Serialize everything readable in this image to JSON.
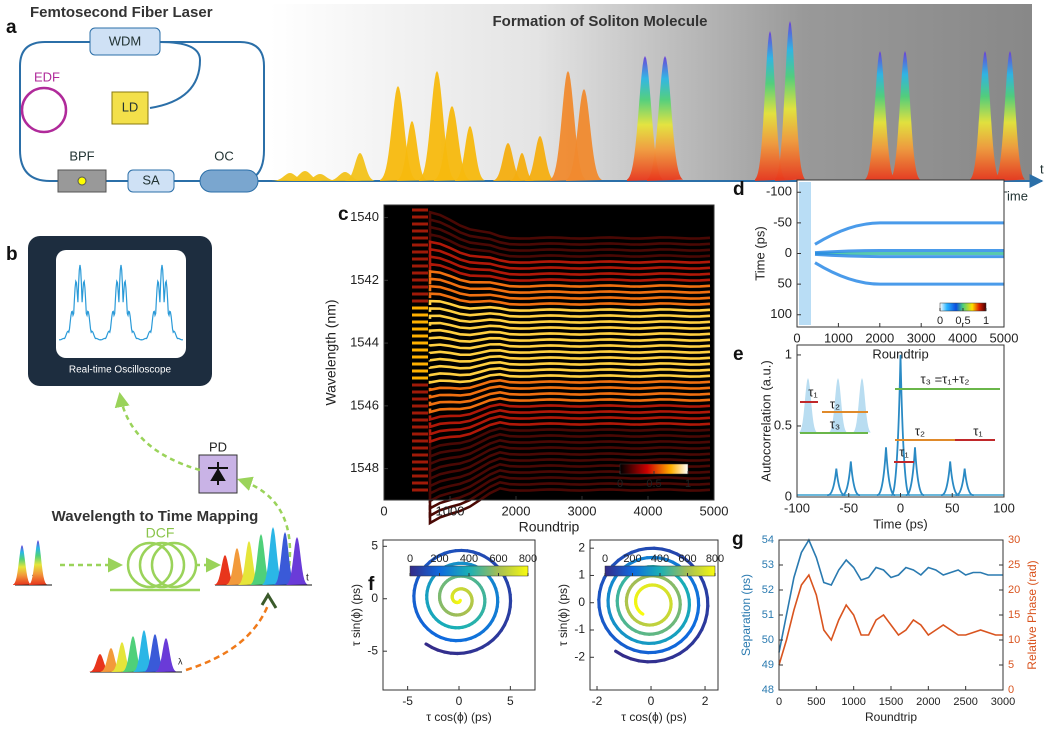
{
  "a": {
    "label": "a",
    "laser_title": "Femtosecond Fiber Laser",
    "wdm": "WDM",
    "edf": "EDF",
    "ld": "LD",
    "bpf": "BPF",
    "sa": "SA",
    "oc": "OC",
    "heading": "Formation of Soliton Molecule",
    "axis_symbol": "t",
    "axis_label": "Roundtrip Time"
  },
  "b": {
    "label": "b",
    "screen_caption": "Real-time Oscilloscope",
    "detector": "PD",
    "heading": "Wavelength to Time Mapping",
    "fiber": "DCF",
    "time_symbol": "t",
    "output_time_symbol": "t",
    "wavelength_symbol": "λ"
  },
  "c": {
    "label": "c",
    "xlabel": "Roundtrip",
    "ylabel": "Wavelength (nm)",
    "xlim": [
      0,
      5000
    ],
    "xticks": [
      0,
      1000,
      2000,
      3000,
      4000,
      5000
    ],
    "ylim": [
      1549,
      1539.6
    ],
    "yticks": [
      1540,
      1542,
      1544,
      1546,
      1548
    ],
    "colorbar_ticks": [
      0,
      0.5,
      1
    ]
  },
  "d": {
    "label": "d",
    "xlabel": "Roundtrip",
    "ylabel": "Time (ps)",
    "xlim": [
      0,
      5000
    ],
    "xticks": [
      0,
      1000,
      2000,
      3000,
      4000,
      5000
    ],
    "ylim": [
      120,
      -120
    ],
    "yticks": [
      -100,
      -50,
      0,
      50,
      100
    ],
    "colorbar_ticks": [
      0,
      0.5,
      1
    ]
  },
  "e": {
    "label": "e",
    "xlabel": "Time (ps)",
    "ylabel": "Autocorrelation (a.u.)",
    "xlim": [
      -100,
      100
    ],
    "xticks": [
      -100,
      -50,
      0,
      50,
      100
    ],
    "ylim": [
      0,
      1.07
    ],
    "yticks": [
      0,
      0.5,
      1
    ],
    "peaks_x": [
      -62,
      -48,
      -14,
      0,
      14,
      48,
      62
    ],
    "peaks": [
      0.2,
      0.25,
      0.35,
      1,
      0.35,
      0.25,
      0.2
    ],
    "annotations": [
      "τ₁",
      "τ₂",
      "τ₃",
      "τ₃ =τ₁+τ₂",
      "τ₂",
      "τ₁",
      "τ₁"
    ]
  },
  "f": {
    "label": "f",
    "left": {
      "xlabel": "τ cos(ϕ) (ps)",
      "ylabel": "τ sin(ϕ) (ps)",
      "xlim": [
        -7.4,
        7.4
      ],
      "xticks": [
        -5,
        0,
        5
      ],
      "ylim": [
        -8.7,
        5.6
      ],
      "yticks": [
        -5,
        0,
        5
      ],
      "colorbar_ticks": [
        0,
        200,
        400,
        600,
        800
      ]
    },
    "right": {
      "xlabel": "τ cos(ϕ) (ps)",
      "ylabel": "τ sin(ϕ) (ps)",
      "xlim": [
        -2.26,
        2.48
      ],
      "xticks": [
        -2,
        0,
        2
      ],
      "ylim": [
        -3.2,
        2.3
      ],
      "yticks": [
        -2,
        -1,
        0,
        1,
        2
      ],
      "colorbar_ticks": [
        0,
        200,
        400,
        600,
        800
      ]
    }
  },
  "g": {
    "label": "g",
    "xlabel": "Roundtrip",
    "ylabel": "Separation (ps)",
    "y2label": "Relative Phase (rad)",
    "xlim": [
      0,
      3000
    ],
    "xticks": [
      0,
      500,
      1000,
      1500,
      2000,
      2500,
      3000
    ],
    "ylim": [
      48,
      54
    ],
    "yticks": [
      48,
      49,
      50,
      51,
      52,
      53,
      54
    ],
    "y2lim": [
      0,
      30
    ],
    "y2ticks": [
      0,
      5,
      10,
      15,
      20,
      25,
      30
    ],
    "x": [
      0,
      100,
      200,
      300,
      400,
      500,
      600,
      700,
      800,
      900,
      1000,
      1100,
      1200,
      1300,
      1400,
      1500,
      1600,
      1700,
      1800,
      1900,
      2000,
      2100,
      2200,
      2300,
      2400,
      2500,
      2600,
      2700,
      2800,
      2900,
      3000
    ],
    "series": [
      {
        "name": "Separation",
        "color": "#2a7ab0",
        "values": [
          49.5,
          51,
          52.5,
          53.5,
          54,
          53.3,
          52.3,
          52.2,
          52.8,
          53.2,
          52.9,
          52.4,
          52.5,
          52.9,
          52.8,
          52.5,
          52.6,
          52.9,
          52.8,
          52.6,
          52.9,
          52.8,
          52.6,
          52.7,
          52.8,
          52.6,
          52.7,
          52.7,
          52.6,
          52.6,
          52.6
        ]
      },
      {
        "name": "Relative Phase",
        "color": "#d9541f",
        "axis": "y2",
        "values": [
          5,
          10,
          16,
          21,
          23,
          19,
          12,
          10,
          14,
          17,
          15,
          11,
          11,
          14,
          15,
          13,
          11,
          12,
          14,
          13,
          11,
          12,
          13,
          12,
          11,
          11,
          11.5,
          12,
          11.5,
          11,
          11
        ]
      }
    ]
  }
}
